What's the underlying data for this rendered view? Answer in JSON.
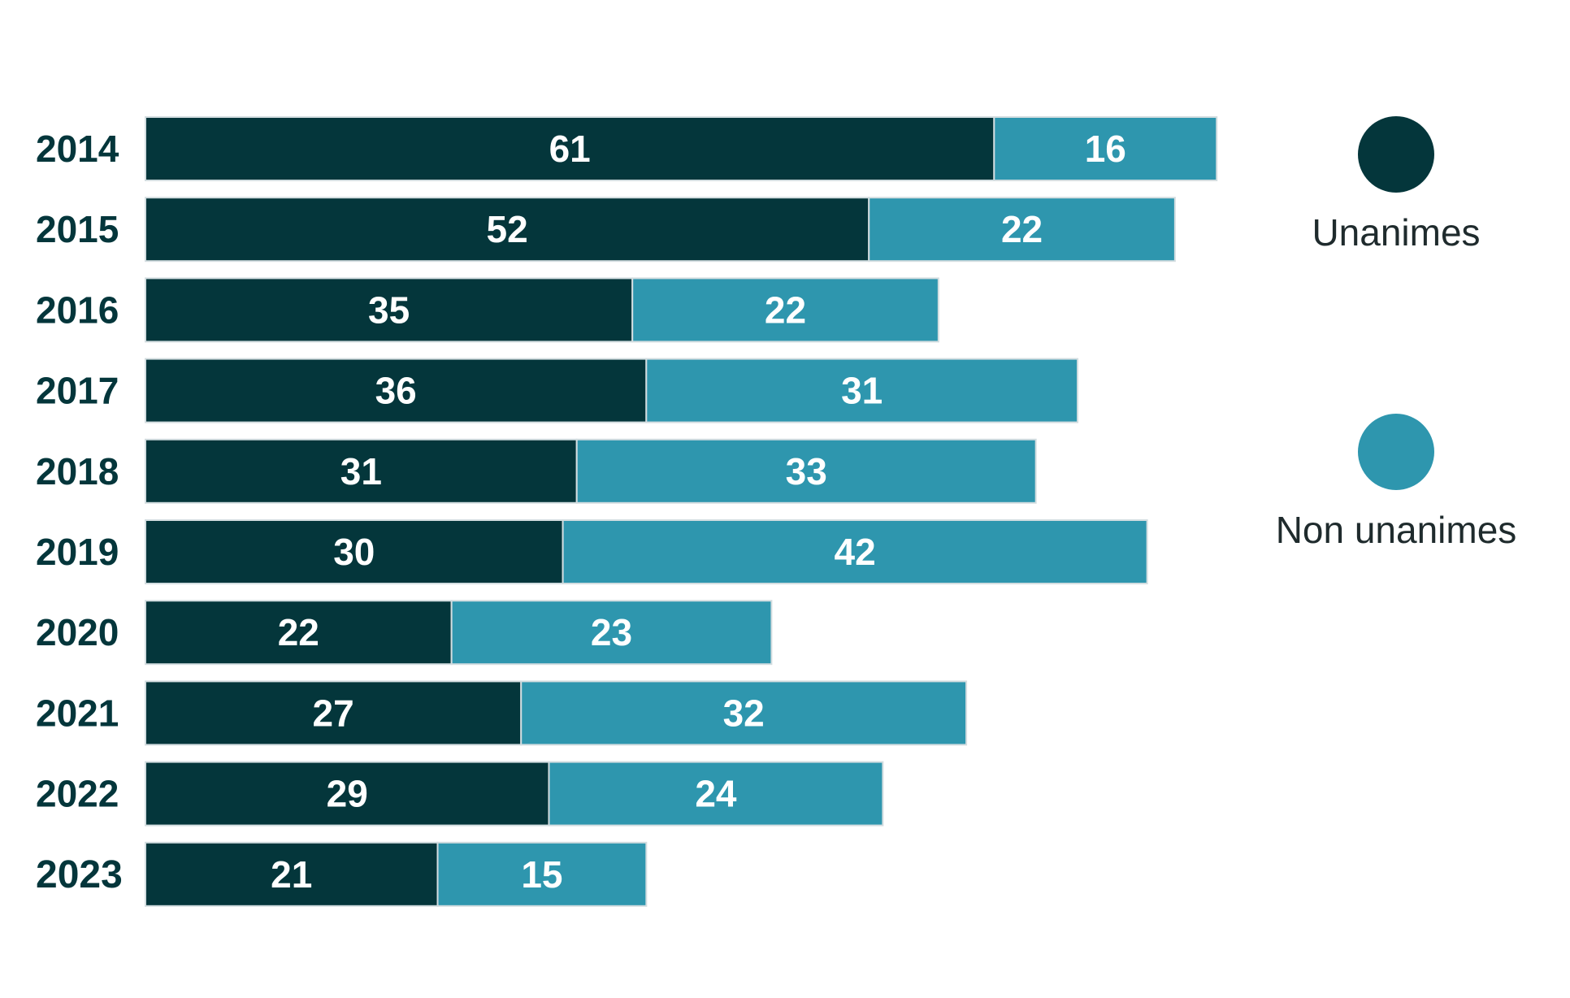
{
  "chart_data": {
    "type": "bar",
    "orientation": "horizontal",
    "stacked": true,
    "categories": [
      "2014",
      "2015",
      "2016",
      "2017",
      "2018",
      "2019",
      "2020",
      "2021",
      "2022",
      "2023"
    ],
    "highlight_category": "2023",
    "series": [
      {
        "name": "Unanimes",
        "color": "#04363b",
        "values": [
          61,
          52,
          35,
          36,
          31,
          30,
          22,
          27,
          29,
          21
        ]
      },
      {
        "name": "Non unanimes",
        "color": "#2e96ae",
        "values": [
          16,
          22,
          22,
          31,
          33,
          42,
          23,
          32,
          24,
          15
        ]
      }
    ],
    "xlim": [
      0,
      80
    ],
    "grid": false,
    "legend_position": "right"
  }
}
